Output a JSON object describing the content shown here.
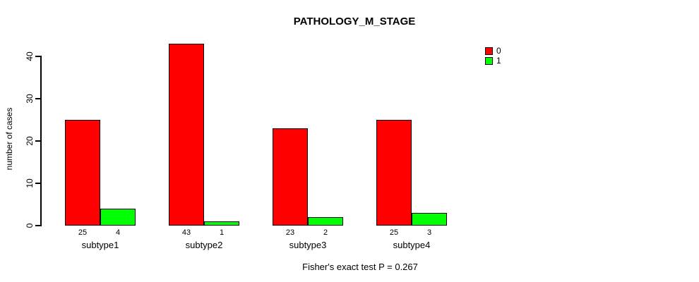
{
  "chart_data": {
    "type": "bar",
    "title": "PATHOLOGY_M_STAGE",
    "ylabel": "number of cases",
    "xlabel": "",
    "categories": [
      "subtype1",
      "subtype2",
      "subtype3",
      "subtype4"
    ],
    "series": [
      {
        "name": "0",
        "color": "#ff0000",
        "values": [
          25,
          43,
          23,
          25
        ]
      },
      {
        "name": "1",
        "color": "#00ff00",
        "values": [
          4,
          1,
          2,
          3
        ]
      }
    ],
    "y_ticks": [
      0,
      10,
      20,
      30,
      40
    ],
    "ylim": [
      0,
      43
    ],
    "grid": false,
    "values_shown_under_bars": true,
    "legend_position": "top-right",
    "annotation": "Fisher's exact test P = 0.267"
  },
  "colors": {
    "bar_border": "#000000",
    "axis": "#000000",
    "text": "#000000",
    "background": "#ffffff"
  }
}
